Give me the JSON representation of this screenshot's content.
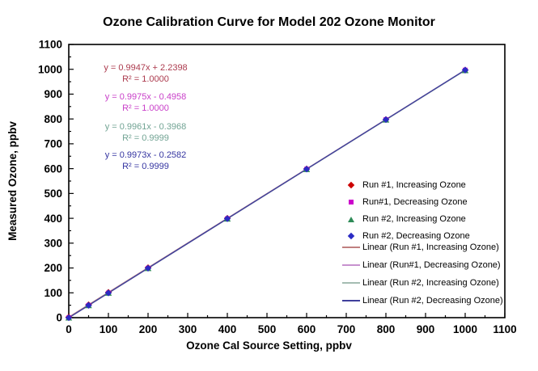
{
  "chart_data": {
    "type": "scatter",
    "title": "Ozone Calibration Curve for Model 202 Ozone Monitor",
    "xlabel": "Ozone Cal Source Setting, ppbv",
    "ylabel": "Measured Ozone, ppbv",
    "xlim": [
      0,
      1100
    ],
    "ylim": [
      0,
      1100
    ],
    "major_tick_step": 100,
    "minor_tick_step": 50,
    "grid": false,
    "legend_position": "inside-right",
    "x": [
      0,
      50,
      100,
      200,
      400,
      600,
      800,
      1000
    ],
    "series": [
      {
        "name": "Run #1, Increasing Ozone",
        "marker": "diamond",
        "color": "#CC0000",
        "values": [
          2.2,
          52.0,
          101.7,
          201.2,
          400.1,
          599.1,
          798.0,
          996.9
        ],
        "trend": {
          "label": "Linear (Run #1, Increasing Ozone)",
          "color": "#C08080",
          "slope": 0.9947,
          "intercept": 2.2398,
          "r2": 1.0
        }
      },
      {
        "name": "Run#1, Decreasing Ozone",
        "marker": "square",
        "color": "#CC00CC",
        "values": [
          -0.5,
          49.4,
          99.3,
          199.0,
          398.5,
          598.0,
          797.5,
          997.0
        ],
        "trend": {
          "label": "Linear (Run#1, Decreasing Ozone)",
          "color": "#C792CF",
          "slope": 0.9975,
          "intercept": -0.4958,
          "r2": 1.0
        }
      },
      {
        "name": "Run #2, Increasing Ozone",
        "marker": "triangle",
        "color": "#2E8B57",
        "values": [
          -0.4,
          49.4,
          99.2,
          198.8,
          398.0,
          597.3,
          796.5,
          995.7
        ],
        "trend": {
          "label": "Linear (Run #2, Increasing Ozone)",
          "color": "#A4BDB2",
          "slope": 0.9961,
          "intercept": -0.3968,
          "r2": 0.9999
        }
      },
      {
        "name": "Run #2, Decreasing Ozone",
        "marker": "diamond",
        "color": "#2B2BC4",
        "values": [
          -0.3,
          49.6,
          99.5,
          199.2,
          398.7,
          598.1,
          797.6,
          997.0
        ],
        "trend": {
          "label": "Linear (Run #2, Decreasing Ozone)",
          "color": "#3F3F9C",
          "slope": 0.9973,
          "intercept": -0.2582,
          "r2": 0.9999
        }
      }
    ],
    "equations": [
      {
        "line1": "y = 0.9947x + 2.2398",
        "line2": "R² = 1.0000",
        "color": "#AC3B4E"
      },
      {
        "line1": "y = 0.9975x - 0.4958",
        "line2": "R² = 1.0000",
        "color": "#C93FC9"
      },
      {
        "line1": "y = 0.9961x - 0.3968",
        "line2": "R² = 0.9999",
        "color": "#72A494"
      },
      {
        "line1": "y = 0.9973x - 0.2582",
        "line2": "R² = 0.9999",
        "color": "#3535A1"
      }
    ]
  }
}
